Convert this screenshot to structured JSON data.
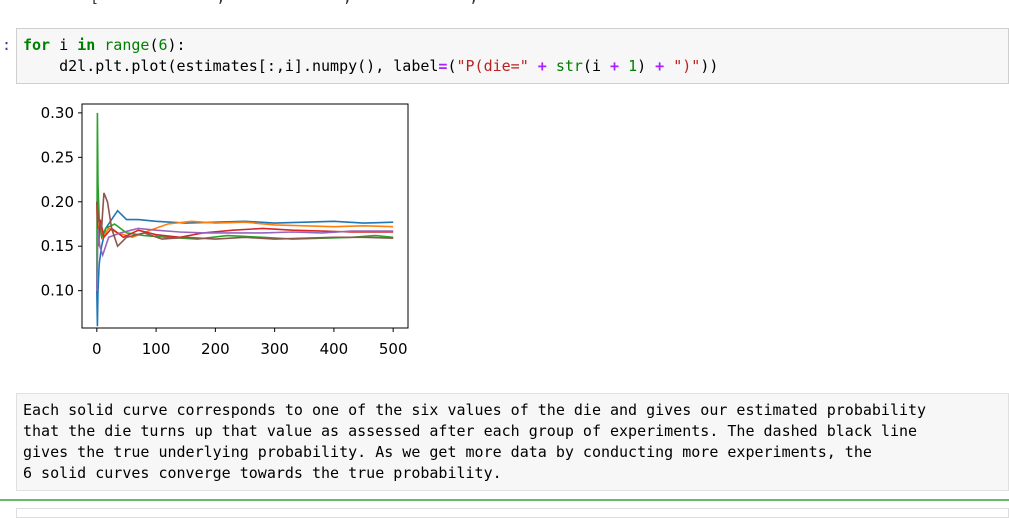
{
  "top_clip_text": "[             ,             ,             ,             ,             ]]),",
  "code_cell": {
    "prompt": ":",
    "line1": {
      "for": "for",
      "var": " i ",
      "in": "in",
      "space": " ",
      "range": "range",
      "open": "(",
      "num": "6",
      "close": "):"
    },
    "line2": {
      "indent": "    ",
      "call": "d2l.plt.plot(estimates[:,i].numpy(), label",
      "eq": "=",
      "open": "(",
      "s1": "\"P(die=\"",
      "plus1": "+",
      "str": "str",
      "mid": "(i ",
      "plus2": "+",
      "one": "1",
      "close1": ") ",
      "plus3": "+",
      "s2": "\")\"",
      "tail": "))"
    }
  },
  "markdown_text": "Each solid curve corresponds to one of the six values of the die and gives our estimated probability\nthat the die turns up that value as assessed after each group of experiments. The dashed black line\ngives the true underlying probability. As we get more data by conducting more experiments, the\n6 solid curves converge towards the true probability.",
  "chart_data": {
    "type": "line",
    "x_ticks": [
      "0",
      "100",
      "200",
      "300",
      "400",
      "500"
    ],
    "y_ticks": [
      "0.10",
      "0.15",
      "0.20",
      "0.25",
      "0.30"
    ],
    "xlim": [
      -25,
      525
    ],
    "ylim": [
      0.058,
      0.31
    ],
    "grid": false,
    "series": [
      {
        "color": "#1f77b4",
        "points": [
          [
            0,
            0.1
          ],
          [
            1,
            0.06
          ],
          [
            2,
            0.1
          ],
          [
            4,
            0.13
          ],
          [
            8,
            0.15
          ],
          [
            15,
            0.17
          ],
          [
            25,
            0.18
          ],
          [
            35,
            0.19
          ],
          [
            50,
            0.18
          ],
          [
            70,
            0.18
          ],
          [
            100,
            0.178
          ],
          [
            150,
            0.176
          ],
          [
            200,
            0.177
          ],
          [
            250,
            0.178
          ],
          [
            300,
            0.176
          ],
          [
            350,
            0.177
          ],
          [
            400,
            0.178
          ],
          [
            450,
            0.176
          ],
          [
            500,
            0.177
          ]
        ]
      },
      {
        "color": "#ff7f0e",
        "points": [
          [
            0,
            0.2
          ],
          [
            2,
            0.15
          ],
          [
            5,
            0.18
          ],
          [
            10,
            0.16
          ],
          [
            20,
            0.17
          ],
          [
            35,
            0.165
          ],
          [
            60,
            0.16
          ],
          [
            90,
            0.168
          ],
          [
            120,
            0.175
          ],
          [
            160,
            0.178
          ],
          [
            200,
            0.176
          ],
          [
            250,
            0.177
          ],
          [
            300,
            0.174
          ],
          [
            350,
            0.173
          ],
          [
            400,
            0.172
          ],
          [
            450,
            0.173
          ],
          [
            500,
            0.172
          ]
        ]
      },
      {
        "color": "#2ca02c",
        "points": [
          [
            0,
            0.1
          ],
          [
            1,
            0.3
          ],
          [
            2,
            0.22
          ],
          [
            4,
            0.18
          ],
          [
            8,
            0.16
          ],
          [
            15,
            0.17
          ],
          [
            30,
            0.175
          ],
          [
            50,
            0.165
          ],
          [
            80,
            0.162
          ],
          [
            120,
            0.16
          ],
          [
            170,
            0.158
          ],
          [
            220,
            0.162
          ],
          [
            280,
            0.16
          ],
          [
            330,
            0.158
          ],
          [
            380,
            0.159
          ],
          [
            430,
            0.16
          ],
          [
            470,
            0.162
          ],
          [
            500,
            0.16
          ]
        ]
      },
      {
        "color": "#d62728",
        "points": [
          [
            0,
            0.2
          ],
          [
            3,
            0.15
          ],
          [
            6,
            0.18
          ],
          [
            12,
            0.16
          ],
          [
            25,
            0.17
          ],
          [
            45,
            0.16
          ],
          [
            70,
            0.168
          ],
          [
            100,
            0.163
          ],
          [
            140,
            0.16
          ],
          [
            180,
            0.165
          ],
          [
            230,
            0.168
          ],
          [
            280,
            0.17
          ],
          [
            330,
            0.168
          ],
          [
            380,
            0.167
          ],
          [
            430,
            0.166
          ],
          [
            500,
            0.166
          ]
        ]
      },
      {
        "color": "#9467bd",
        "points": [
          [
            0,
            0.1
          ],
          [
            2,
            0.17
          ],
          [
            5,
            0.15
          ],
          [
            10,
            0.14
          ],
          [
            20,
            0.16
          ],
          [
            40,
            0.165
          ],
          [
            70,
            0.17
          ],
          [
            100,
            0.168
          ],
          [
            140,
            0.166
          ],
          [
            180,
            0.165
          ],
          [
            230,
            0.165
          ],
          [
            280,
            0.165
          ],
          [
            330,
            0.166
          ],
          [
            380,
            0.165
          ],
          [
            430,
            0.167
          ],
          [
            500,
            0.167
          ]
        ]
      },
      {
        "color": "#8c564b",
        "points": [
          [
            0,
            0.2
          ],
          [
            3,
            0.18
          ],
          [
            8,
            0.17
          ],
          [
            12,
            0.21
          ],
          [
            18,
            0.2
          ],
          [
            25,
            0.17
          ],
          [
            35,
            0.15
          ],
          [
            50,
            0.16
          ],
          [
            80,
            0.165
          ],
          [
            110,
            0.158
          ],
          [
            150,
            0.16
          ],
          [
            200,
            0.158
          ],
          [
            250,
            0.16
          ],
          [
            300,
            0.158
          ],
          [
            350,
            0.159
          ],
          [
            400,
            0.16
          ],
          [
            450,
            0.16
          ],
          [
            500,
            0.159
          ]
        ]
      }
    ]
  }
}
